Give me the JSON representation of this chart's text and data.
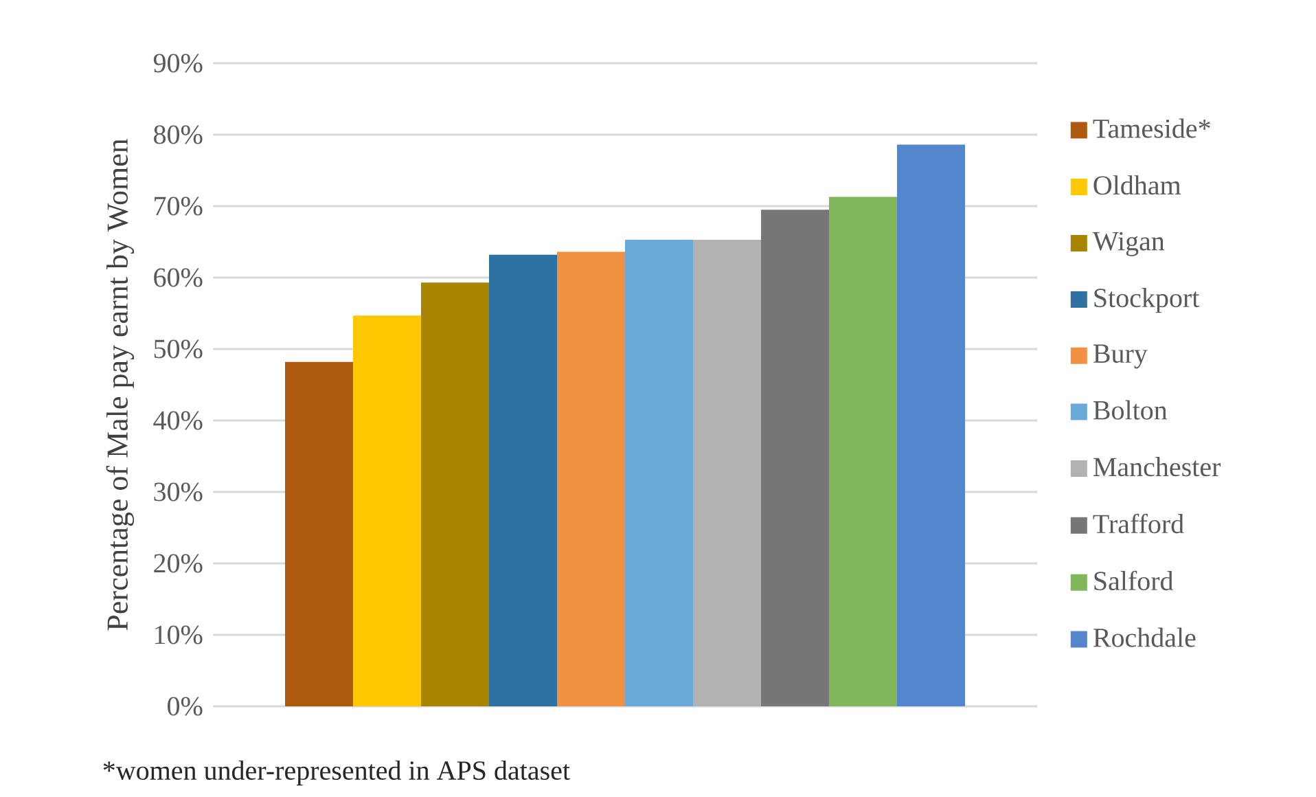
{
  "chart_data": {
    "type": "bar",
    "ylabel": "Percentage of Male pay earnt by Women",
    "categories": [
      null
    ],
    "series": [
      {
        "name": "Tameside*",
        "color": "#ae5a0e",
        "values": [
          48.2
        ]
      },
      {
        "name": "Oldham",
        "color": "#ffc800",
        "values": [
          54.7
        ]
      },
      {
        "name": "Wigan",
        "color": "#a98400",
        "values": [
          59.3
        ]
      },
      {
        "name": "Stockport",
        "color": "#2e71a3",
        "values": [
          63.2
        ]
      },
      {
        "name": "Bury",
        "color": "#f19141",
        "values": [
          63.6
        ]
      },
      {
        "name": "Bolton",
        "color": "#6aaadb",
        "values": [
          65.3
        ]
      },
      {
        "name": "Manchester",
        "color": "#b2b2b2",
        "values": [
          65.3
        ]
      },
      {
        "name": "Trafford",
        "color": "#777777",
        "values": [
          69.5
        ]
      },
      {
        "name": "Salford",
        "color": "#80b75a",
        "values": [
          71.3
        ]
      },
      {
        "name": "Rochdale",
        "color": "#5486cd",
        "values": [
          78.6
        ]
      }
    ],
    "ylim": [
      0,
      90
    ],
    "yticks": [
      {
        "value": 0,
        "label": "0%"
      },
      {
        "value": 10,
        "label": "10%"
      },
      {
        "value": 20,
        "label": "20%"
      },
      {
        "value": 30,
        "label": "30%"
      },
      {
        "value": 40,
        "label": "40%"
      },
      {
        "value": 50,
        "label": "50%"
      },
      {
        "value": 60,
        "label": "60%"
      },
      {
        "value": 70,
        "label": "70%"
      },
      {
        "value": 80,
        "label": "80%"
      },
      {
        "value": 90,
        "label": "90%"
      }
    ],
    "grid": "y",
    "legend": "right",
    "annotations": [
      "*women under-represented in APS dataset"
    ]
  }
}
